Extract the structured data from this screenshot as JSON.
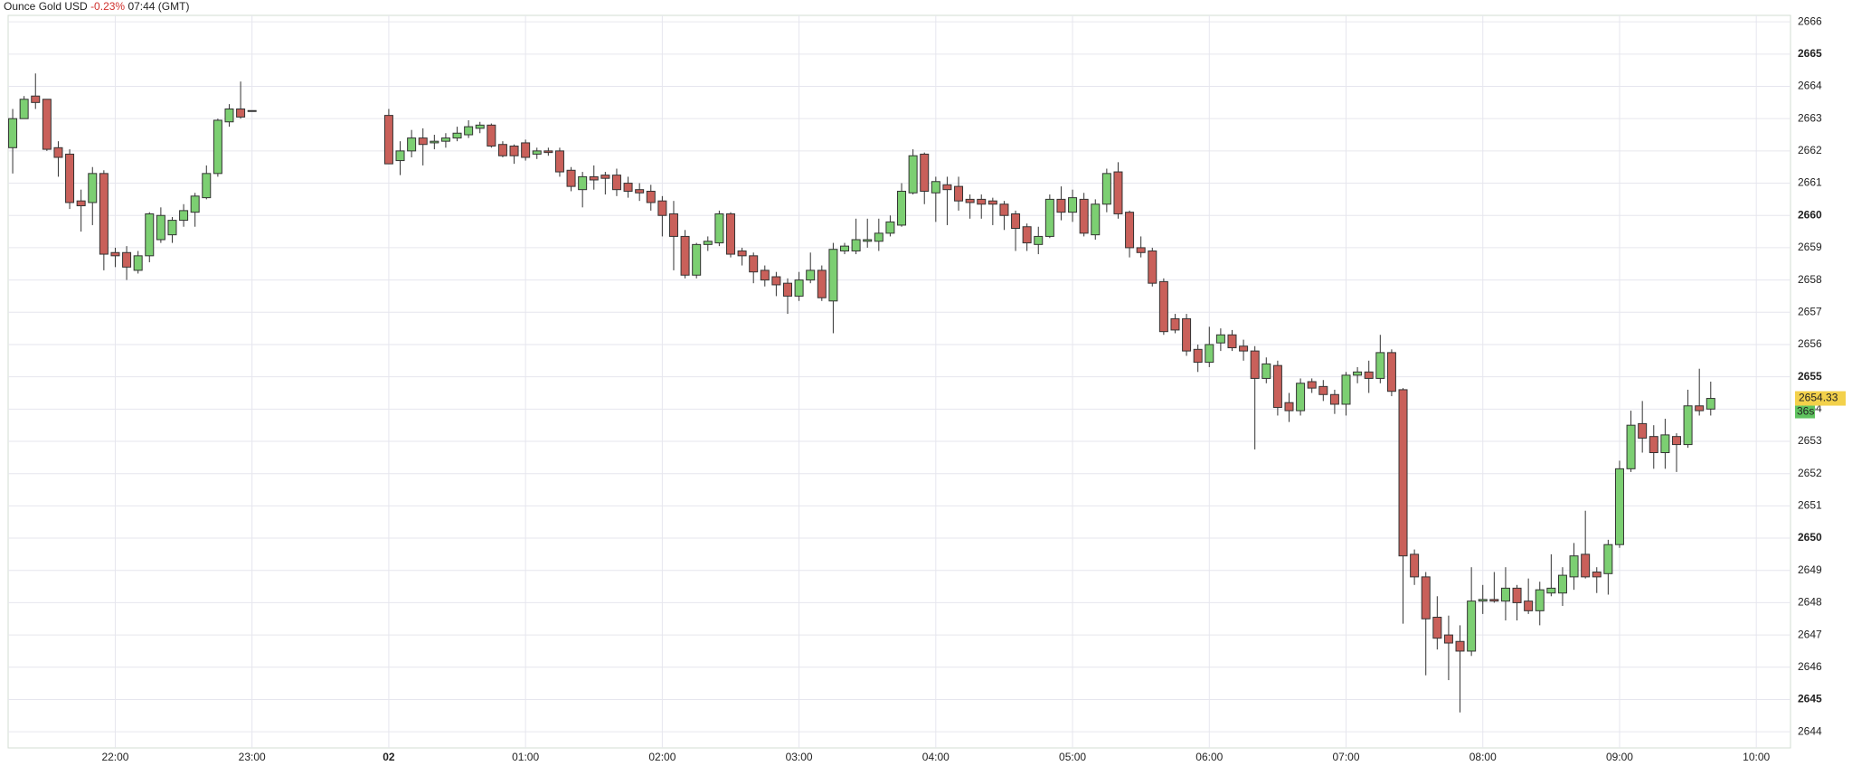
{
  "chart_data": {
    "type": "candlestick",
    "title": "Ounce Gold USD",
    "change": "-0.23%",
    "change_color": "#d0312d",
    "time": "07:44 (GMT)",
    "up_color": "#7ccf72",
    "down_color": "#c9605a",
    "grid": true,
    "x": [
      -165,
      -160,
      -155,
      -150,
      -145,
      -140,
      -135,
      -130,
      -125,
      -120,
      -115,
      -110,
      -105,
      -100,
      -95,
      -90,
      -85,
      -80,
      -75,
      -70,
      -65,
      -60,
      0,
      5,
      10,
      15,
      20,
      25,
      30,
      35,
      40,
      45,
      50,
      55,
      60,
      65,
      70,
      75,
      80,
      85,
      90,
      95,
      100,
      105,
      110,
      115,
      120,
      125,
      130,
      135,
      140,
      145,
      150,
      155,
      160,
      165,
      170,
      175,
      180,
      185,
      190,
      195,
      200,
      205,
      210,
      215,
      220,
      225,
      230,
      235,
      240,
      245,
      250,
      255,
      260,
      265,
      270,
      275,
      280,
      285,
      290,
      295,
      300,
      305,
      310,
      315,
      320,
      325,
      330,
      335,
      340,
      345,
      350,
      355,
      360,
      365,
      370,
      375,
      380,
      385,
      390,
      395,
      400,
      405,
      410,
      415,
      420,
      425,
      430,
      435,
      440,
      445,
      450,
      455,
      460,
      465,
      470,
      475,
      480,
      485,
      490,
      495,
      500,
      505,
      510,
      515,
      520,
      525,
      530,
      535,
      540,
      545,
      550,
      555,
      560,
      565,
      570,
      575,
      580
    ],
    "open": [
      2662.1,
      2663.0,
      2663.7,
      2663.6,
      2662.1,
      2661.9,
      2660.45,
      2660.4,
      2661.3,
      2658.85,
      2658.85,
      2658.3,
      2658.75,
      2659.25,
      2659.4,
      2659.85,
      2660.1,
      2660.55,
      2661.3,
      2662.9,
      2663.3,
      2663.25,
      2663.1,
      2661.7,
      2662.0,
      2662.4,
      2662.25,
      2662.3,
      2662.4,
      2662.5,
      2662.7,
      2662.8,
      2662.2,
      2662.15,
      2662.25,
      2661.9,
      2662.0,
      2662.0,
      2661.4,
      2660.8,
      2661.2,
      2661.25,
      2661.25,
      2661.0,
      2660.8,
      2660.75,
      2660.45,
      2660.05,
      2659.35,
      2658.15,
      2659.1,
      2659.15,
      2660.05,
      2658.9,
      2658.75,
      2658.3,
      2658.1,
      2657.9,
      2657.5,
      2658.0,
      2658.3,
      2657.35,
      2658.9,
      2658.9,
      2659.2,
      2659.2,
      2659.45,
      2659.7,
      2660.7,
      2661.9,
      2660.7,
      2660.95,
      2660.9,
      2660.5,
      2660.5,
      2660.45,
      2660.35,
      2660.05,
      2659.65,
      2659.1,
      2659.35,
      2660.5,
      2660.1,
      2660.5,
      2659.4,
      2660.35,
      2661.35,
      2660.1,
      2659.0,
      2658.9,
      2657.95,
      2656.8,
      2656.8,
      2655.85,
      2655.45,
      2656.05,
      2656.3,
      2655.95,
      2655.8,
      2654.95,
      2655.35,
      2654.2,
      2653.95,
      2654.85,
      2654.7,
      2654.45,
      2654.15,
      2655.05,
      2655.15,
      2654.95,
      2655.75,
      2654.6,
      2649.5,
      2648.8,
      2647.55,
      2647.0,
      2646.8,
      2646.5,
      2648.05,
      2648.1,
      2648.05,
      2648.45,
      2648.05,
      2647.75,
      2648.3,
      2648.3,
      2648.8,
      2649.5,
      2648.95,
      2648.9,
      2649.8,
      2652.15,
      2653.55,
      2653.15,
      2652.65,
      2653.15,
      2652.9,
      2654.1,
      2654.0
    ],
    "high": [
      2663.3,
      2663.7,
      2664.4,
      2663.6,
      2662.3,
      2662.05,
      2660.8,
      2661.5,
      2661.4,
      2659.0,
      2659.05,
      2658.9,
      2660.1,
      2660.25,
      2659.95,
      2660.35,
      2660.7,
      2661.55,
      2663.0,
      2663.45,
      2664.15,
      2663.25,
      2663.3,
      2662.3,
      2662.65,
      2662.7,
      2662.5,
      2662.55,
      2662.75,
      2662.95,
      2662.9,
      2662.85,
      2662.3,
      2662.2,
      2662.35,
      2662.1,
      2662.1,
      2662.1,
      2661.5,
      2661.35,
      2661.55,
      2661.35,
      2661.45,
      2661.2,
      2661.0,
      2660.95,
      2660.6,
      2660.45,
      2659.55,
      2659.15,
      2659.35,
      2660.15,
      2660.1,
      2659.0,
      2658.85,
      2658.45,
      2658.25,
      2658.05,
      2658.25,
      2658.85,
      2658.45,
      2659.15,
      2659.15,
      2659.9,
      2659.9,
      2659.9,
      2660.0,
      2661.0,
      2662.05,
      2661.95,
      2661.2,
      2661.2,
      2661.2,
      2660.65,
      2660.65,
      2660.55,
      2660.45,
      2660.15,
      2659.75,
      2659.65,
      2660.65,
      2660.9,
      2660.8,
      2660.7,
      2660.5,
      2661.45,
      2661.65,
      2660.15,
      2659.35,
      2659.0,
      2658.05,
      2656.95,
      2656.95,
      2656.0,
      2656.55,
      2656.5,
      2656.45,
      2656.15,
      2655.95,
      2655.6,
      2655.5,
      2654.5,
      2654.95,
      2654.95,
      2654.9,
      2654.6,
      2655.15,
      2655.3,
      2655.5,
      2656.3,
      2655.85,
      2654.65,
      2649.65,
      2648.95,
      2648.2,
      2647.6,
      2647.3,
      2649.1,
      2648.55,
      2648.95,
      2649.1,
      2648.55,
      2648.75,
      2648.65,
      2649.5,
      2649.1,
      2649.85,
      2650.85,
      2649.1,
      2649.95,
      2652.4,
      2653.95,
      2654.25,
      2653.5,
      2653.7,
      2653.25,
      2654.6,
      2655.25,
      2654.85
    ],
    "low": [
      2661.3,
      2663.0,
      2663.3,
      2662.0,
      2661.2,
      2660.2,
      2659.5,
      2659.7,
      2658.3,
      2658.4,
      2658.0,
      2658.2,
      2658.55,
      2659.15,
      2659.15,
      2659.65,
      2659.65,
      2660.5,
      2661.2,
      2662.75,
      2663.0,
      2663.25,
      2661.6,
      2661.25,
      2661.8,
      2661.55,
      2662.05,
      2662.1,
      2662.3,
      2662.4,
      2662.55,
      2662.1,
      2661.8,
      2661.6,
      2661.7,
      2661.75,
      2661.85,
      2661.2,
      2660.75,
      2660.25,
      2660.8,
      2660.65,
      2660.6,
      2660.55,
      2660.45,
      2660.15,
      2659.35,
      2658.3,
      2658.05,
      2658.05,
      2658.9,
      2659.05,
      2658.7,
      2658.45,
      2657.9,
      2657.8,
      2657.5,
      2656.95,
      2657.35,
      2657.9,
      2657.35,
      2656.35,
      2658.8,
      2658.8,
      2659.0,
      2658.9,
      2659.35,
      2659.65,
      2660.65,
      2660.35,
      2659.8,
      2659.7,
      2660.15,
      2659.9,
      2659.9,
      2659.7,
      2659.55,
      2658.9,
      2658.9,
      2658.8,
      2659.3,
      2659.85,
      2659.8,
      2659.35,
      2659.25,
      2660.1,
      2659.9,
      2658.7,
      2658.7,
      2657.8,
      2656.3,
      2656.35,
      2655.65,
      2655.15,
      2655.3,
      2655.8,
      2655.8,
      2655.5,
      2652.75,
      2654.8,
      2653.8,
      2653.6,
      2653.8,
      2654.5,
      2654.25,
      2653.85,
      2653.8,
      2654.8,
      2654.5,
      2654.8,
      2654.4,
      2647.35,
      2648.55,
      2645.75,
      2646.55,
      2645.6,
      2644.6,
      2646.35,
      2647.65,
      2648.0,
      2647.45,
      2647.45,
      2647.65,
      2647.3,
      2648.2,
      2647.9,
      2648.4,
      2648.75,
      2648.3,
      2648.25,
      2649.7,
      2652.05,
      2652.65,
      2652.15,
      2652.15,
      2652.05,
      2652.8,
      2653.8,
      2653.8
    ],
    "close": [
      2663.0,
      2663.6,
      2663.5,
      2662.05,
      2661.8,
      2660.4,
      2660.3,
      2661.3,
      2658.8,
      2658.75,
      2658.4,
      2658.75,
      2660.05,
      2660.0,
      2659.85,
      2660.15,
      2660.6,
      2661.3,
      2662.95,
      2663.3,
      2663.05,
      2663.25,
      2661.6,
      2662.0,
      2662.4,
      2662.2,
      2662.3,
      2662.4,
      2662.55,
      2662.75,
      2662.8,
      2662.15,
      2661.85,
      2661.85,
      2661.8,
      2662.0,
      2661.95,
      2661.35,
      2660.9,
      2661.2,
      2661.1,
      2661.15,
      2660.8,
      2660.75,
      2660.7,
      2660.4,
      2660.0,
      2659.35,
      2658.15,
      2659.1,
      2659.2,
      2660.05,
      2658.8,
      2658.75,
      2658.25,
      2658.0,
      2657.85,
      2657.5,
      2658.0,
      2658.3,
      2657.45,
      2658.95,
      2659.05,
      2659.25,
      2659.25,
      2659.45,
      2659.8,
      2660.75,
      2661.85,
      2660.75,
      2661.05,
      2660.8,
      2660.45,
      2660.4,
      2660.35,
      2660.35,
      2660.0,
      2659.6,
      2659.15,
      2659.35,
      2660.5,
      2660.1,
      2660.55,
      2659.45,
      2660.35,
      2661.3,
      2660.05,
      2659.0,
      2658.85,
      2657.9,
      2656.4,
      2656.45,
      2655.8,
      2655.45,
      2656.0,
      2656.3,
      2655.9,
      2655.8,
      2654.95,
      2655.4,
      2654.05,
      2653.95,
      2654.8,
      2654.65,
      2654.45,
      2654.15,
      2655.05,
      2655.15,
      2654.95,
      2655.75,
      2654.55,
      2649.45,
      2648.8,
      2647.5,
      2646.9,
      2646.75,
      2646.5,
      2648.05,
      2648.1,
      2648.05,
      2648.45,
      2648.0,
      2647.75,
      2648.4,
      2648.45,
      2648.85,
      2649.45,
      2648.8,
      2648.8,
      2649.8,
      2652.15,
      2653.5,
      2653.1,
      2652.65,
      2653.2,
      2652.9,
      2654.1,
      2653.95,
      2654.33
    ],
    "xlim": [
      -167,
      615
    ],
    "xticks": [
      {
        "value": -120,
        "label": "22:00"
      },
      {
        "value": -60,
        "label": "23:00"
      },
      {
        "value": 0,
        "label": "02"
      },
      {
        "value": 60,
        "label": "01:00"
      },
      {
        "value": 120,
        "label": "02:00"
      },
      {
        "value": 180,
        "label": "03:00"
      },
      {
        "value": 240,
        "label": "04:00"
      },
      {
        "value": 300,
        "label": "05:00"
      },
      {
        "value": 360,
        "label": "06:00"
      },
      {
        "value": 420,
        "label": "07:00"
      },
      {
        "value": 480,
        "label": "08:00"
      },
      {
        "value": 540,
        "label": "09:00"
      },
      {
        "value": 600,
        "label": "10:00"
      }
    ],
    "ylim": [
      2643.5,
      2666.2
    ],
    "yticks": [
      2644,
      2645,
      2646,
      2647,
      2648,
      2649,
      2650,
      2651,
      2652,
      2653,
      2654,
      2655,
      2656,
      2657,
      2658,
      2659,
      2660,
      2661,
      2662,
      2663,
      2664,
      2665,
      2666
    ],
    "last_price": 2654.33,
    "last_price_color": "#f3d14b",
    "countdown": "36s",
    "countdown_color": "#5fc35f"
  }
}
